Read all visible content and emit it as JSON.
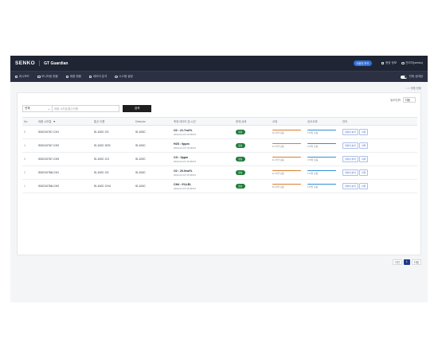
{
  "header": {
    "logo": "SENKO",
    "product": "GT Guardian",
    "pill": "사용자 모드",
    "links": [
      {
        "label": "현장 정보",
        "icon": "settings-icon"
      },
      {
        "label": "관리자(senko)",
        "icon": "user-icon"
      }
    ]
  },
  "nav": {
    "items": [
      {
        "label": "대시보드",
        "icon": "dashboard-icon"
      },
      {
        "label": "모니터링 현황",
        "icon": "monitor-icon"
      },
      {
        "label": "제품 현황",
        "icon": "box-icon"
      },
      {
        "label": "데이터 분석",
        "icon": "chart-icon"
      },
      {
        "label": "시스템 설정",
        "icon": "gear-icon"
      }
    ],
    "toggle_label": "전체 상태창"
  },
  "breadcrumb": "⌂ > 제품 현황",
  "unit": {
    "label": "농도단위",
    "value": "자동"
  },
  "search": {
    "select_value": "전체",
    "placeholder": "제품 시리얼/통신이름",
    "button": "검색"
  },
  "table": {
    "headers": [
      "No.",
      "제품 시리얼",
      "통신 이름",
      "Detector",
      "측정 데이터 및 시간",
      "현재 상태",
      "교정",
      "센서교체",
      "관리"
    ],
    "rows": [
      {
        "no": "5",
        "serial": "S00210767-CH1",
        "name": "SI-100C O2",
        "detector": "SI-100C",
        "reading": "O2 : 21.7vol%",
        "time": "2024-01-15 16:38:03",
        "status": "정상",
        "cal": "D-47일 남음",
        "sensor": "170일 남음"
      },
      {
        "no": "4",
        "serial": "S00210767-CH2",
        "name": "SI-100C H2S",
        "detector": "SI-100C",
        "reading": "H2S : 0ppm",
        "time": "2024-01-15 16:38:03",
        "status": "정상",
        "cal": "D-47일 남음",
        "sensor": "170일 남음"
      },
      {
        "no": "3",
        "serial": "S00210767-CH3",
        "name": "SI-100C CO",
        "detector": "SI-100C",
        "reading": "CO : 0ppm",
        "time": "2024-01-15 16:38:03",
        "status": "정상",
        "cal": "D-47일 남음",
        "sensor": "170일 남음"
      },
      {
        "no": "2",
        "serial": "S00210768-CH1",
        "name": "SI-100C O2",
        "detector": "SI-100C",
        "reading": "O2 : 20.9vol%",
        "time": "2024-01-15 16:38:03",
        "status": "정상",
        "cal": "D-47일 남음",
        "sensor": "170일 남음"
      },
      {
        "no": "1",
        "serial": "S00210768-CH2",
        "name": "SI-100C CH4",
        "detector": "SI-100C",
        "reading": "CH4 : 0%LEL",
        "time": "2024-01-15 16:38:03",
        "status": "정상",
        "cal": "D-47일 남음",
        "sensor": "170일 남음"
      }
    ],
    "action_buttons": [
      "데이터 분석",
      "이력"
    ]
  },
  "pagination": {
    "prev": "이전",
    "page": "1",
    "next": "다음"
  },
  "colors": {
    "status_ok": "#1f7a3a",
    "calibration_bar": "#d97f2e",
    "sensor_bar": "#2f8fd6",
    "header_bg": "#1f2533",
    "accent": "#2f6fe0"
  }
}
